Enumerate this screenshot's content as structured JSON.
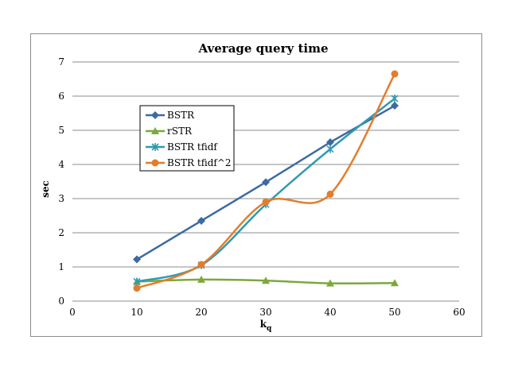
{
  "chart_data": {
    "type": "line",
    "title": "Average query time",
    "xlabel": "k",
    "xlabel_sub": "q",
    "ylabel": "sec",
    "xlim": [
      0,
      60
    ],
    "ylim": [
      0,
      7
    ],
    "xticks": [
      0,
      10,
      20,
      30,
      40,
      50,
      60
    ],
    "yticks": [
      0,
      1,
      2,
      3,
      4,
      5,
      6,
      7
    ],
    "grid": "horizontal",
    "legend_position": "left",
    "x": [
      10,
      20,
      30,
      40,
      50
    ],
    "series": [
      {
        "name": "BSTR",
        "values": [
          1.22,
          2.35,
          3.48,
          4.65,
          5.72
        ],
        "color": "#3c6aa1",
        "marker": "diamond",
        "smooth": false
      },
      {
        "name": "rSTR",
        "values": [
          0.57,
          0.63,
          0.6,
          0.52,
          0.53
        ],
        "color": "#7da83a",
        "marker": "triangle",
        "smooth": true
      },
      {
        "name": "BSTR tfidf",
        "values": [
          0.57,
          1.05,
          2.83,
          4.45,
          5.93
        ],
        "color": "#2f9ab2",
        "marker": "x",
        "smooth": true
      },
      {
        "name": "BSTR tfidf^2",
        "values": [
          0.38,
          1.07,
          2.9,
          3.13,
          6.65
        ],
        "color": "#e37d2c",
        "marker": "circle",
        "smooth": true
      }
    ]
  }
}
